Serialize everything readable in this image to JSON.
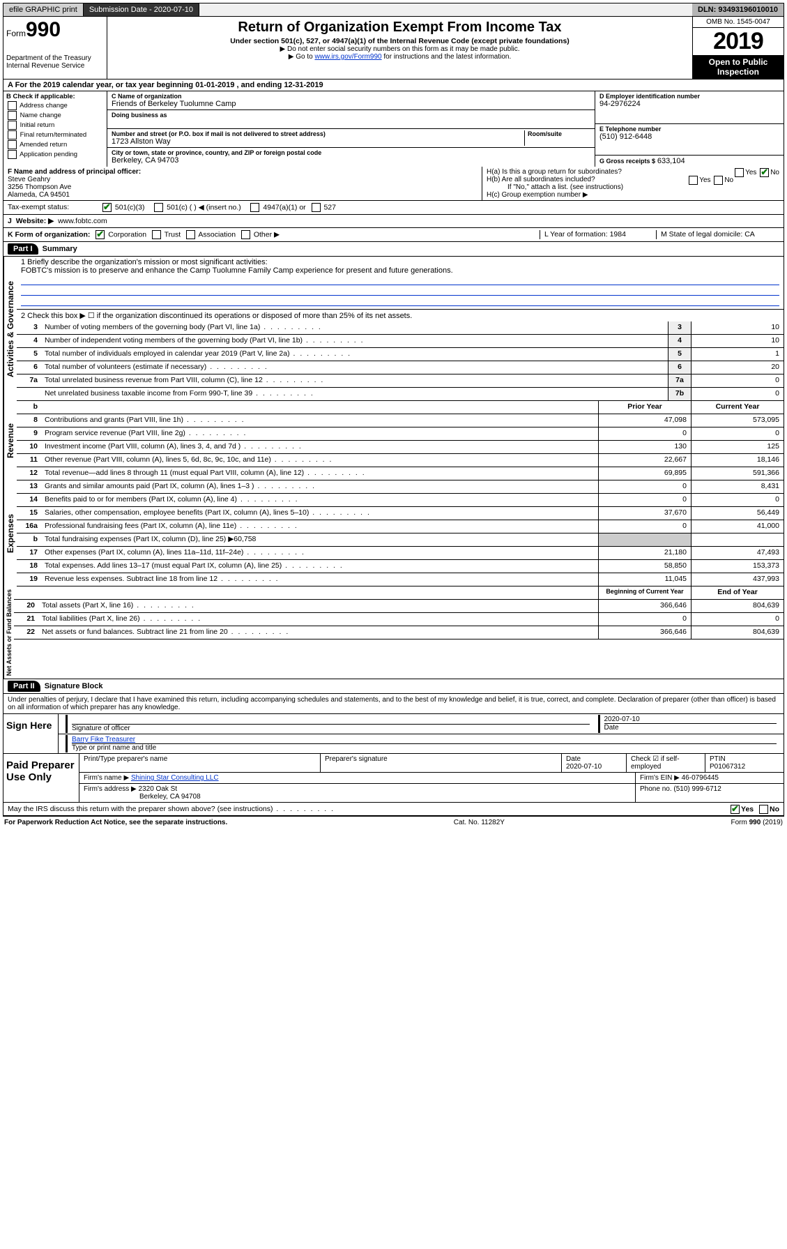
{
  "topbar": {
    "efile": "efile GRAPHIC print",
    "submission_label": "Submission Date - 2020-07-10",
    "dln": "DLN: 93493196010010"
  },
  "header": {
    "form_word": "Form",
    "form_num": "990",
    "title": "Return of Organization Exempt From Income Tax",
    "subtitle": "Under section 501(c), 527, or 4947(a)(1) of the Internal Revenue Code (except private foundations)",
    "note1": "▶ Do not enter social security numbers on this form as it may be made public.",
    "note2_pre": "▶ Go to ",
    "note2_link": "www.irs.gov/Form990",
    "note2_post": " for instructions and the latest information.",
    "dept": "Department of the Treasury\nInternal Revenue Service",
    "omb": "OMB No. 1545-0047",
    "year": "2019",
    "open": "Open to Public Inspection"
  },
  "rowA": "A For the 2019 calendar year, or tax year beginning 01-01-2019   , and ending 12-31-2019",
  "boxB": {
    "title": "B Check if applicable:",
    "items": [
      "Address change",
      "Name change",
      "Initial return",
      "Final return/terminated",
      "Amended return",
      "Application pending"
    ]
  },
  "boxC": {
    "name_label": "C Name of organization",
    "name": "Friends of Berkeley Tuolumne Camp",
    "dba_label": "Doing business as",
    "addr_label": "Number and street (or P.O. box if mail is not delivered to street address)",
    "room_label": "Room/suite",
    "addr": "1723 Allston Way",
    "city_label": "City or town, state or province, country, and ZIP or foreign postal code",
    "city": "Berkeley, CA  94703"
  },
  "boxD": {
    "label": "D Employer identification number",
    "value": "94-2976224"
  },
  "boxE": {
    "label": "E Telephone number",
    "value": "(510) 912-6448"
  },
  "boxG": {
    "label": "G Gross receipts $",
    "value": "633,104"
  },
  "boxF": {
    "label": "F  Name and address of principal officer:",
    "name": "Steve Geahry",
    "addr1": "3256 Thompson Ave",
    "addr2": "Alameda, CA  94501"
  },
  "boxH": {
    "a": "H(a)  Is this a group return for subordinates?",
    "b": "H(b)  Are all subordinates included?",
    "b_note": "If \"No,\" attach a list. (see instructions)",
    "c": "H(c)  Group exemption number ▶"
  },
  "taxexempt": {
    "label": "Tax-exempt status:",
    "c3": "501(c)(3)",
    "c": "501(c) (  ) ◀ (insert no.)",
    "a1": "4947(a)(1) or",
    "s527": "527"
  },
  "boxJ": {
    "label": "J",
    "text": "Website: ▶",
    "value": "www.fobtc.com"
  },
  "boxK": {
    "text": "K Form of organization:",
    "corp": "Corporation",
    "trust": "Trust",
    "assoc": "Association",
    "other": "Other ▶"
  },
  "boxL": {
    "text": "L Year of formation: 1984"
  },
  "boxM": {
    "text": "M State of legal domicile: CA"
  },
  "part1": {
    "label": "Part I",
    "title": "Summary",
    "q1": "1  Briefly describe the organization's mission or most significant activities:",
    "mission": "FOBTC's mission is to preserve and enhance the Camp Tuolumne Family Camp experience for present and future generations.",
    "q2": "2   Check this box ▶ ☐  if the organization discontinued its operations or disposed of more than 25% of its net assets.",
    "lines_gov": [
      {
        "n": "3",
        "d": "Number of voting members of the governing body (Part VI, line 1a)",
        "box": "3",
        "v": "10"
      },
      {
        "n": "4",
        "d": "Number of independent voting members of the governing body (Part VI, line 1b)",
        "box": "4",
        "v": "10"
      },
      {
        "n": "5",
        "d": "Total number of individuals employed in calendar year 2019 (Part V, line 2a)",
        "box": "5",
        "v": "1"
      },
      {
        "n": "6",
        "d": "Total number of volunteers (estimate if necessary)",
        "box": "6",
        "v": "20"
      },
      {
        "n": "7a",
        "d": "Total unrelated business revenue from Part VIII, column (C), line 12",
        "box": "7a",
        "v": "0"
      },
      {
        "n": "",
        "d": "Net unrelated business taxable income from Form 990-T, line 39",
        "box": "7b",
        "v": "0"
      }
    ],
    "col_prior": "Prior Year",
    "col_current": "Current Year",
    "lines_rev": [
      {
        "n": "8",
        "d": "Contributions and grants (Part VIII, line 1h)",
        "p": "47,098",
        "c": "573,095"
      },
      {
        "n": "9",
        "d": "Program service revenue (Part VIII, line 2g)",
        "p": "0",
        "c": "0"
      },
      {
        "n": "10",
        "d": "Investment income (Part VIII, column (A), lines 3, 4, and 7d )",
        "p": "130",
        "c": "125"
      },
      {
        "n": "11",
        "d": "Other revenue (Part VIII, column (A), lines 5, 6d, 8c, 9c, 10c, and 11e)",
        "p": "22,667",
        "c": "18,146"
      },
      {
        "n": "12",
        "d": "Total revenue—add lines 8 through 11 (must equal Part VIII, column (A), line 12)",
        "p": "69,895",
        "c": "591,366"
      }
    ],
    "lines_exp": [
      {
        "n": "13",
        "d": "Grants and similar amounts paid (Part IX, column (A), lines 1–3 )",
        "p": "0",
        "c": "8,431"
      },
      {
        "n": "14",
        "d": "Benefits paid to or for members (Part IX, column (A), line 4)",
        "p": "0",
        "c": "0"
      },
      {
        "n": "15",
        "d": "Salaries, other compensation, employee benefits (Part IX, column (A), lines 5–10)",
        "p": "37,670",
        "c": "56,449"
      },
      {
        "n": "16a",
        "d": "Professional fundraising fees (Part IX, column (A), line 11e)",
        "p": "0",
        "c": "41,000"
      },
      {
        "n": "b",
        "d": "Total fundraising expenses (Part IX, column (D), line 25) ▶60,758",
        "p": "",
        "c": "",
        "shaded": true
      },
      {
        "n": "17",
        "d": "Other expenses (Part IX, column (A), lines 11a–11d, 11f–24e)",
        "p": "21,180",
        "c": "47,493"
      },
      {
        "n": "18",
        "d": "Total expenses. Add lines 13–17 (must equal Part IX, column (A), line 25)",
        "p": "58,850",
        "c": "153,373"
      },
      {
        "n": "19",
        "d": "Revenue less expenses. Subtract line 18 from line 12",
        "p": "11,045",
        "c": "437,993"
      }
    ],
    "col_begin": "Beginning of Current Year",
    "col_end": "End of Year",
    "lines_net": [
      {
        "n": "20",
        "d": "Total assets (Part X, line 16)",
        "p": "366,646",
        "c": "804,639"
      },
      {
        "n": "21",
        "d": "Total liabilities (Part X, line 26)",
        "p": "0",
        "c": "0"
      },
      {
        "n": "22",
        "d": "Net assets or fund balances. Subtract line 21 from line 20",
        "p": "366,646",
        "c": "804,639"
      }
    ]
  },
  "vlabels": {
    "gov": "Activities & Governance",
    "rev": "Revenue",
    "exp": "Expenses",
    "net": "Net Assets or Fund Balances"
  },
  "part2": {
    "label": "Part II",
    "title": "Signature Block",
    "penalty": "Under penalties of perjury, I declare that I have examined this return, including accompanying schedules and statements, and to the best of my knowledge and belief, it is true, correct, and complete. Declaration of preparer (other than officer) is based on all information of which preparer has any knowledge.",
    "sign_here": "Sign Here",
    "sig_officer": "Signature of officer",
    "sig_date": "2020-07-10",
    "date_label": "Date",
    "officer_name": "Barry Fike  Treasurer",
    "type_name": "Type or print name and title",
    "paid": "Paid Preparer Use Only",
    "prep_name_label": "Print/Type preparer's name",
    "prep_sig_label": "Preparer's signature",
    "prep_date_label": "Date",
    "prep_date": "2020-07-10",
    "check_if": "Check ☑ if self-employed",
    "ptin_label": "PTIN",
    "ptin": "P01067312",
    "firm_name_label": "Firm's name    ▶",
    "firm_name": "Shining Star Consulting LLC",
    "firm_ein_label": "Firm's EIN ▶",
    "firm_ein": "46-0796445",
    "firm_addr_label": "Firm's address ▶",
    "firm_addr": "2320 Oak St",
    "firm_city": "Berkeley, CA  94708",
    "phone_label": "Phone no.",
    "phone": "(510) 999-6712",
    "discuss": "May the IRS discuss this return with the preparer shown above? (see instructions)",
    "yes": "Yes",
    "no": "No"
  },
  "footer": {
    "paperwork": "For Paperwork Reduction Act Notice, see the separate instructions.",
    "cat": "Cat. No. 11282Y",
    "form": "Form 990 (2019)"
  }
}
